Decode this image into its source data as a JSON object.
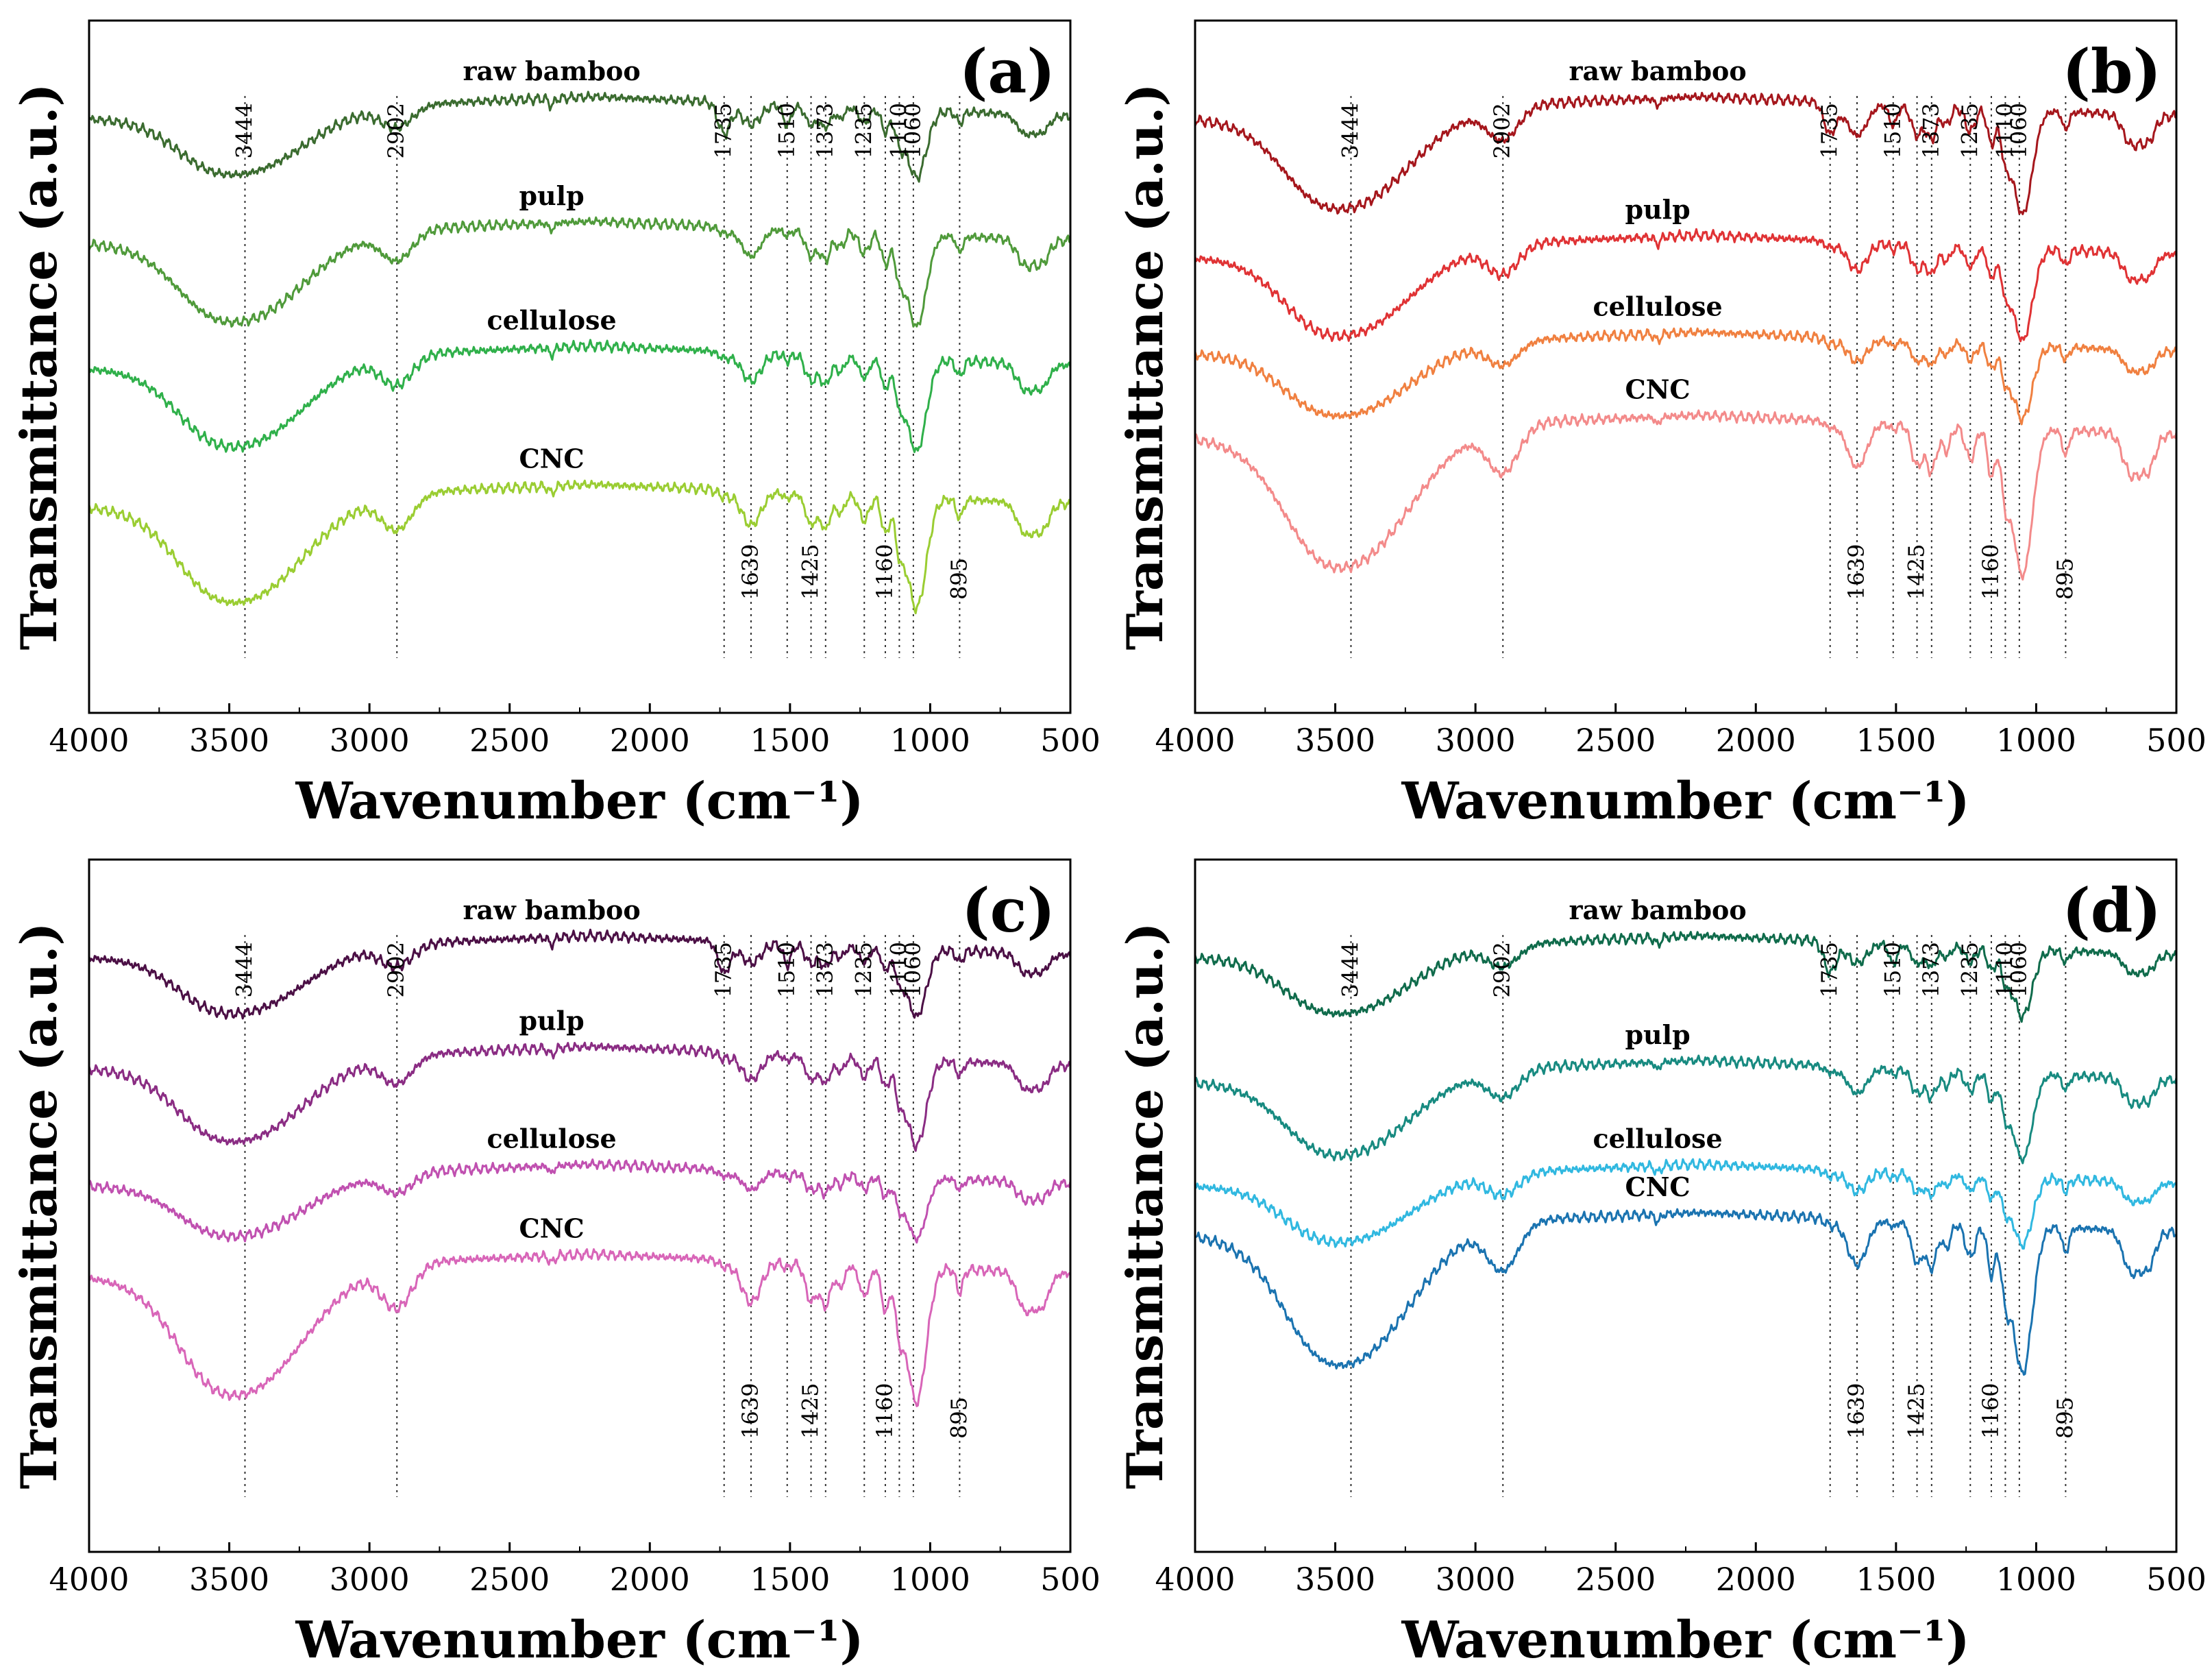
{
  "chart_data": [
    {
      "type": "line",
      "panel_label": "(a)",
      "xlabel": "Wavenumber (cm⁻¹)",
      "ylabel": "Transmittance (a.u.)",
      "xlim": [
        4000,
        500
      ],
      "xticks": [
        "4000",
        "3500",
        "3000",
        "2500",
        "2000",
        "1500",
        "1000",
        "500"
      ],
      "top_peaks": [
        "3444",
        "2902",
        "1735",
        "1510",
        "1373",
        "1235",
        "1110",
        "1060"
      ],
      "bottom_peaks": [
        "1639",
        "1425",
        "1160",
        "895"
      ],
      "series": [
        {
          "name": "raw bamboo",
          "color": "#3a6b2f",
          "baseline": 0.86,
          "depth": 0.55
        },
        {
          "name": "pulp",
          "color": "#4f9a3a",
          "baseline": 0.68,
          "depth": 0.75
        },
        {
          "name": "cellulose",
          "color": "#2fb04a",
          "baseline": 0.5,
          "depth": 0.75
        },
        {
          "name": "CNC",
          "color": "#9acd32",
          "baseline": 0.3,
          "depth": 0.9
        }
      ]
    },
    {
      "type": "line",
      "panel_label": "(b)",
      "xlabel": "Wavenumber (cm⁻¹)",
      "ylabel": "Transmittance (a.u.)",
      "xlim": [
        4000,
        500
      ],
      "xticks": [
        "4000",
        "3500",
        "3000",
        "2500",
        "2000",
        "1500",
        "1000",
        "500"
      ],
      "top_peaks": [
        "3444",
        "2902",
        "1735",
        "1510",
        "1373",
        "1235",
        "1110",
        "1060"
      ],
      "bottom_peaks": [
        "1639",
        "1425",
        "1160",
        "895"
      ],
      "series": [
        {
          "name": "raw bamboo",
          "color": "#a5161c",
          "baseline": 0.86,
          "depth": 0.85
        },
        {
          "name": "pulp",
          "color": "#e03234",
          "baseline": 0.66,
          "depth": 0.75
        },
        {
          "name": "cellulose",
          "color": "#f08040",
          "baseline": 0.52,
          "depth": 0.6
        },
        {
          "name": "CNC",
          "color": "#f38a8a",
          "baseline": 0.4,
          "depth": 1.2
        }
      ]
    },
    {
      "type": "line",
      "panel_label": "(c)",
      "xlabel": "Wavenumber (cm⁻¹)",
      "ylabel": "Transmittance (a.u.)",
      "xlim": [
        4000,
        500
      ],
      "xticks": [
        "4000",
        "3500",
        "3000",
        "2500",
        "2000",
        "1500",
        "1000",
        "500"
      ],
      "top_peaks": [
        "3444",
        "2902",
        "1735",
        "1510",
        "1373",
        "1235",
        "1110",
        "1060"
      ],
      "bottom_peaks": [
        "1639",
        "1425",
        "1160",
        "895"
      ],
      "series": [
        {
          "name": "raw bamboo",
          "color": "#4b0f45",
          "baseline": 0.86,
          "depth": 0.55
        },
        {
          "name": "pulp",
          "color": "#8a2c83",
          "baseline": 0.7,
          "depth": 0.7
        },
        {
          "name": "cellulose",
          "color": "#c050b0",
          "baseline": 0.53,
          "depth": 0.5
        },
        {
          "name": "CNC",
          "color": "#d865b8",
          "baseline": 0.4,
          "depth": 1.1
        }
      ]
    },
    {
      "type": "line",
      "panel_label": "(d)",
      "xlabel": "Wavenumber (cm⁻¹)",
      "ylabel": "Transmittance (a.u.)",
      "xlim": [
        4000,
        500
      ],
      "xticks": [
        "4000",
        "3500",
        "3000",
        "2500",
        "2000",
        "1500",
        "1000",
        "500"
      ],
      "top_peaks": [
        "3444",
        "2902",
        "1735",
        "1510",
        "1373",
        "1235",
        "1110",
        "1060"
      ],
      "bottom_peaks": [
        "1639",
        "1425",
        "1160",
        "895"
      ],
      "series": [
        {
          "name": "raw bamboo",
          "color": "#0f6b4b",
          "baseline": 0.86,
          "depth": 0.55
        },
        {
          "name": "pulp",
          "color": "#178a80",
          "baseline": 0.68,
          "depth": 0.7
        },
        {
          "name": "cellulose",
          "color": "#30b8e0",
          "baseline": 0.53,
          "depth": 0.55
        },
        {
          "name": "CNC",
          "color": "#1a73b0",
          "baseline": 0.46,
          "depth": 1.2
        }
      ]
    }
  ]
}
